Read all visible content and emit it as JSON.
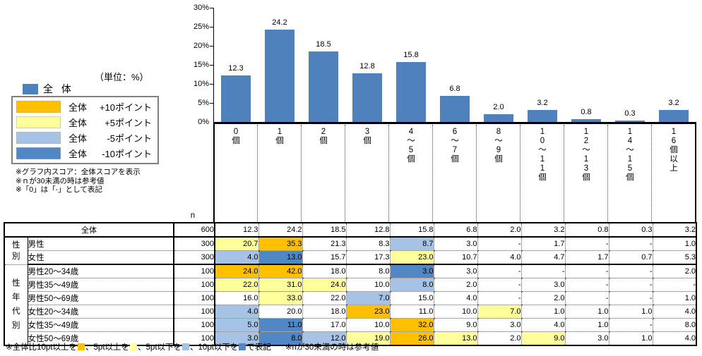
{
  "colors": {
    "bar": "#4F81BD",
    "plus10": "#FFC000",
    "plus5": "#FFFF9C",
    "minus5": "#A6C2E4",
    "minus10": "#5287C6"
  },
  "legend": {
    "overall_label": "全 体",
    "rows": [
      {
        "color_key": "plus10",
        "label": "全体",
        "value": "+10ポイント"
      },
      {
        "color_key": "plus5",
        "label": "全体",
        "value": "+5ポイント"
      },
      {
        "color_key": "minus5",
        "label": "全体",
        "value": "-5ポイント"
      },
      {
        "color_key": "minus10",
        "label": "全体",
        "value": "-10ポイント"
      }
    ],
    "notes": [
      "※グラフ内スコア：全体スコアを表示",
      "※ｎが30未満の時は参考値",
      "※「0」は「-」として表記"
    ]
  },
  "chart_data": {
    "type": "bar",
    "series_name": "全体",
    "unit_label": "（単位：%）",
    "categories": [
      "0個",
      "1個",
      "2個",
      "3個",
      "4～5個",
      "6～7個",
      "8～9個",
      "10～11個",
      "12～13個",
      "14～15個",
      "16個以上"
    ],
    "values": [
      12.3,
      24.2,
      18.5,
      12.8,
      15.8,
      6.8,
      2.0,
      3.2,
      0.8,
      0.3,
      3.2
    ],
    "ylim": [
      0,
      30
    ],
    "ytick_step": 5,
    "yticks": [
      "0%",
      "5%",
      "10%",
      "15%",
      "20%",
      "25%",
      "30%"
    ],
    "grid": false,
    "legend_position": "left",
    "bar_color_key": "bar"
  },
  "table": {
    "n_header": "n",
    "rows": [
      {
        "label": "全体",
        "n": 600,
        "values": [
          12.3,
          24.2,
          18.5,
          12.8,
          15.8,
          6.8,
          2.0,
          3.2,
          0.8,
          0.3,
          3.2
        ],
        "hl": [
          "",
          "",
          "",
          "",
          "",
          "",
          "",
          "",
          "",
          "",
          ""
        ]
      },
      {
        "group": "性別",
        "group_rows": 2,
        "label": "男性",
        "n": 300,
        "values": [
          20.7,
          35.3,
          21.3,
          8.3,
          8.7,
          3.0,
          null,
          1.7,
          null,
          null,
          1.0
        ],
        "hl": [
          "plus5",
          "plus10",
          "",
          "",
          "minus5",
          "",
          "",
          "",
          "",
          "",
          ""
        ]
      },
      {
        "label": "女性",
        "n": 300,
        "values": [
          4.0,
          13.0,
          15.7,
          17.3,
          23.0,
          10.7,
          4.0,
          4.7,
          1.7,
          0.7,
          5.3
        ],
        "hl": [
          "minus5",
          "minus10",
          "",
          "",
          "plus5",
          "",
          "",
          "",
          "",
          "",
          ""
        ]
      },
      {
        "group": "性年代別",
        "group_rows": 6,
        "label": "男性20～34歳",
        "n": 100,
        "values": [
          24.0,
          42.0,
          18.0,
          8.0,
          3.0,
          3.0,
          null,
          null,
          null,
          null,
          2.0
        ],
        "hl": [
          "plus10",
          "plus10",
          "",
          "",
          "minus10",
          "",
          "",
          "",
          "",
          "",
          ""
        ]
      },
      {
        "label": "男性35～49歳",
        "n": 100,
        "values": [
          22.0,
          31.0,
          24.0,
          10.0,
          8.0,
          2.0,
          null,
          3.0,
          null,
          null,
          null
        ],
        "hl": [
          "plus5",
          "plus5",
          "plus5",
          "",
          "minus5",
          "",
          "",
          "",
          "",
          "",
          ""
        ]
      },
      {
        "label": "男性50～69歳",
        "n": 100,
        "values": [
          16.0,
          33.0,
          22.0,
          7.0,
          15.0,
          4.0,
          null,
          2.0,
          null,
          null,
          1.0
        ],
        "hl": [
          "",
          "plus5",
          "",
          "minus5",
          "",
          "",
          "",
          "",
          "",
          "",
          ""
        ]
      },
      {
        "label": "女性20～34歳",
        "n": 100,
        "values": [
          4.0,
          20.0,
          18.0,
          23.0,
          11.0,
          10.0,
          7.0,
          1.0,
          1.0,
          1.0,
          4.0
        ],
        "hl": [
          "minus5",
          "",
          "",
          "plus10",
          "",
          "",
          "plus5",
          "",
          "",
          "",
          ""
        ]
      },
      {
        "label": "女性35～49歳",
        "n": 100,
        "values": [
          5.0,
          11.0,
          17.0,
          10.0,
          32.0,
          9.0,
          3.0,
          4.0,
          1.0,
          null,
          8.0
        ],
        "hl": [
          "minus5",
          "minus10",
          "",
          "",
          "plus10",
          "",
          "",
          "",
          "",
          "",
          ""
        ]
      },
      {
        "label": "女性50～69歳",
        "n": 100,
        "values": [
          3.0,
          8.0,
          12.0,
          19.0,
          26.0,
          13.0,
          2.0,
          9.0,
          3.0,
          1.0,
          4.0
        ],
        "hl": [
          "minus5",
          "minus10",
          "minus5",
          "plus5",
          "plus10",
          "plus5",
          "",
          "plus5",
          "",
          "",
          ""
        ]
      }
    ]
  },
  "footer": {
    "segments": [
      "※全体比10pt以上を",
      "、5pt以上を",
      "、5pt以下を",
      "、10pt以下を",
      "で表記"
    ],
    "swatch_order": [
      "plus10",
      "plus5",
      "minus5",
      "minus10"
    ],
    "suffix": "※nが30未満の時は参考値"
  }
}
